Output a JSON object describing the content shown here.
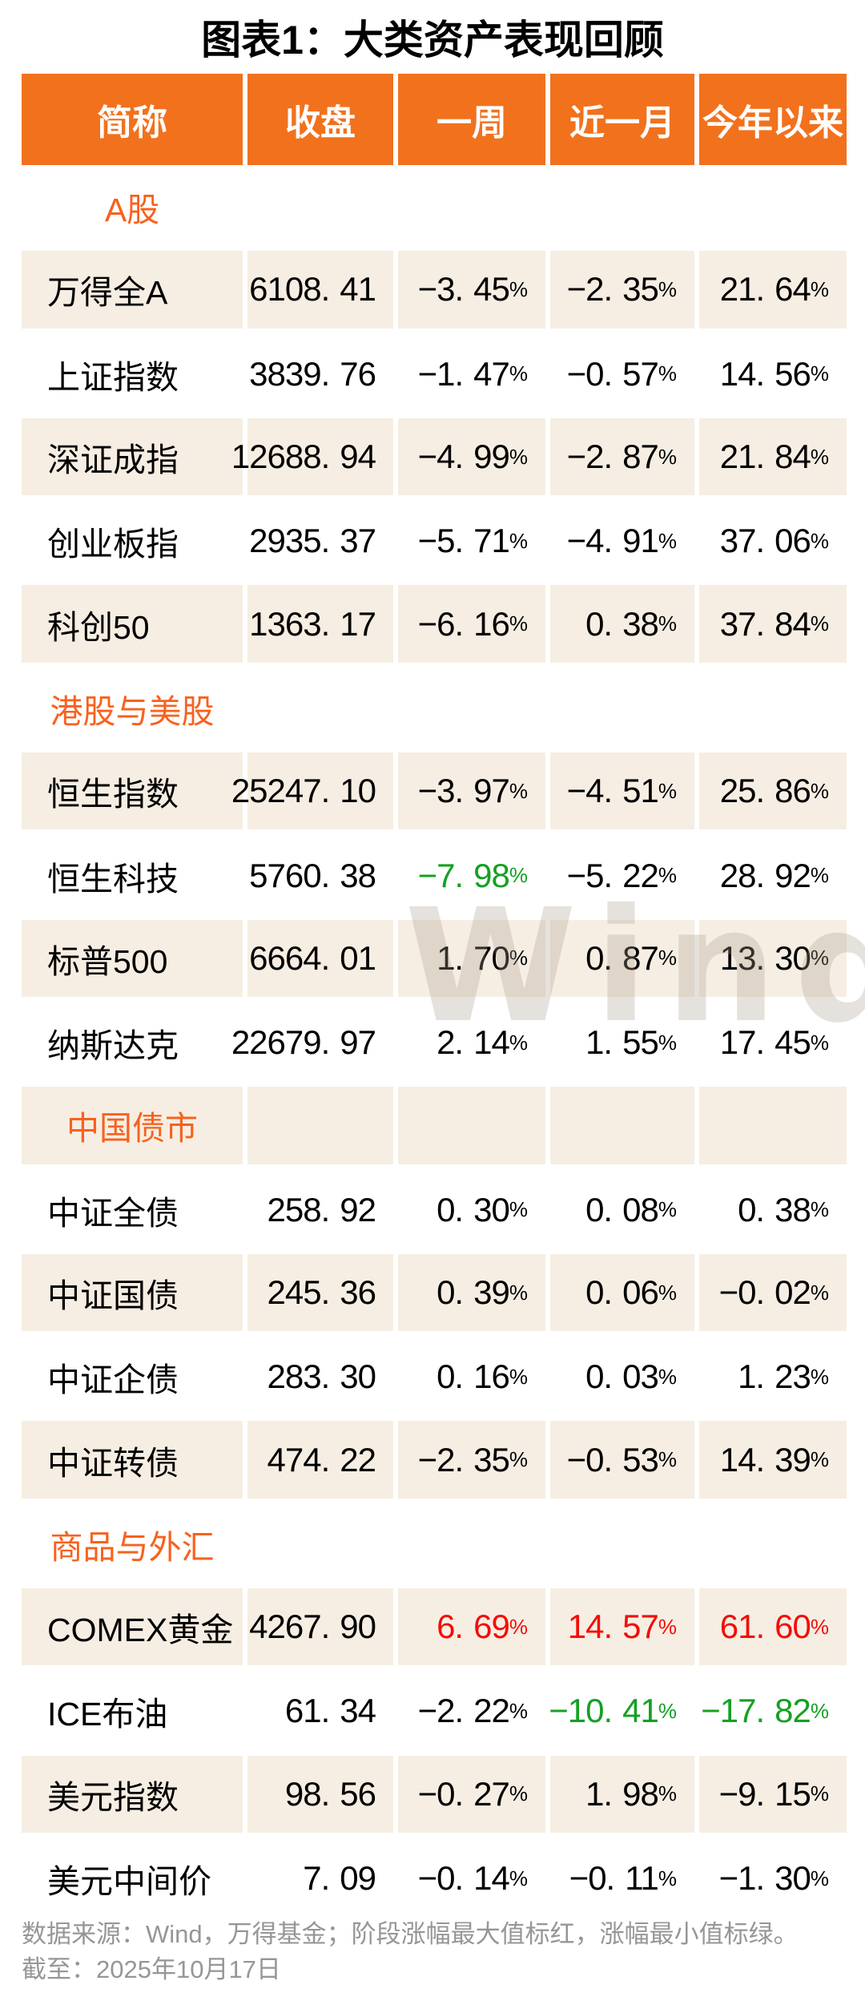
{
  "title": "图表1：大类资产表现回顾",
  "watermark": "Wind",
  "table": {
    "columns": [
      "简称",
      "收盘",
      "一周",
      "近一月",
      "今年以来"
    ],
    "sections": [
      {
        "label": "A股",
        "rows": [
          {
            "name": "万得全A",
            "values": [
              "6108.41",
              "-3.45%",
              "-2.35%",
              "21.64%"
            ],
            "value_colors": [
              "",
              "",
              "",
              ""
            ]
          },
          {
            "name": "上证指数",
            "values": [
              "3839.76",
              "-1.47%",
              "-0.57%",
              "14.56%"
            ],
            "value_colors": [
              "",
              "",
              "",
              ""
            ]
          },
          {
            "name": "深证成指",
            "values": [
              "12688.94",
              "-4.99%",
              "-2.87%",
              "21.84%"
            ],
            "value_colors": [
              "",
              "",
              "",
              ""
            ]
          },
          {
            "name": "创业板指",
            "values": [
              "2935.37",
              "-5.71%",
              "-4.91%",
              "37.06%"
            ],
            "value_colors": [
              "",
              "",
              "",
              ""
            ]
          },
          {
            "name": "科创50",
            "values": [
              "1363.17",
              "-6.16%",
              "0.38%",
              "37.84%"
            ],
            "value_colors": [
              "",
              "",
              "",
              ""
            ]
          }
        ]
      },
      {
        "label": "港股与美股",
        "rows": [
          {
            "name": "恒生指数",
            "values": [
              "25247.10",
              "-3.97%",
              "-4.51%",
              "25.86%"
            ],
            "value_colors": [
              "",
              "",
              "",
              ""
            ]
          },
          {
            "name": "恒生科技",
            "values": [
              "5760.38",
              "-7.98%",
              "-5.22%",
              "28.92%"
            ],
            "value_colors": [
              "",
              "green",
              "",
              ""
            ]
          },
          {
            "name": "标普500",
            "values": [
              "6664.01",
              "1.70%",
              "0.87%",
              "13.30%"
            ],
            "value_colors": [
              "",
              "",
              "",
              ""
            ]
          },
          {
            "name": "纳斯达克",
            "values": [
              "22679.97",
              "2.14%",
              "1.55%",
              "17.45%"
            ],
            "value_colors": [
              "",
              "",
              "",
              ""
            ]
          }
        ]
      },
      {
        "label": "中国债市",
        "rows": [
          {
            "name": "中证全债",
            "values": [
              "258.92",
              "0.30%",
              "0.08%",
              "0.38%"
            ],
            "value_colors": [
              "",
              "",
              "",
              ""
            ]
          },
          {
            "name": "中证国债",
            "values": [
              "245.36",
              "0.39%",
              "0.06%",
              "-0.02%"
            ],
            "value_colors": [
              "",
              "",
              "",
              ""
            ]
          },
          {
            "name": "中证企债",
            "values": [
              "283.30",
              "0.16%",
              "0.03%",
              "1.23%"
            ],
            "value_colors": [
              "",
              "",
              "",
              ""
            ]
          },
          {
            "name": "中证转债",
            "values": [
              "474.22",
              "-2.35%",
              "-0.53%",
              "14.39%"
            ],
            "value_colors": [
              "",
              "",
              "",
              ""
            ]
          }
        ]
      },
      {
        "label": "商品与外汇",
        "rows": [
          {
            "name": "COMEX黄金",
            "values": [
              "4267.90",
              "6.69%",
              "14.57%",
              "61.60%"
            ],
            "value_colors": [
              "",
              "red",
              "red",
              "red"
            ]
          },
          {
            "name": "ICE布油",
            "values": [
              "61.34",
              "-2.22%",
              "-10.41%",
              "-17.82%"
            ],
            "value_colors": [
              "",
              "",
              "green",
              "green"
            ]
          },
          {
            "name": "美元指数",
            "values": [
              "98.56",
              "-0.27%",
              "1.98%",
              "-9.15%"
            ],
            "value_colors": [
              "",
              "",
              "",
              ""
            ]
          },
          {
            "name": "美元中间价",
            "values": [
              "7.09",
              "-0.14%",
              "-0.11%",
              "-1.30%"
            ],
            "value_colors": [
              "",
              "",
              "",
              ""
            ]
          }
        ]
      }
    ]
  },
  "footer": {
    "line1": "数据来源：Wind，万得基金；阶段涨幅最大值标红，涨幅最小值标绿。",
    "line2": "截至：2025年10月17日"
  },
  "colors": {
    "header_bg": "#F2711D",
    "header_text": "#FFFFFF",
    "section_text": "#F8611E",
    "row_shade": "#F6EEE3",
    "max_gain_red": "#F50C06",
    "min_gain_green": "#14A023",
    "footer_gray": "#969696"
  }
}
